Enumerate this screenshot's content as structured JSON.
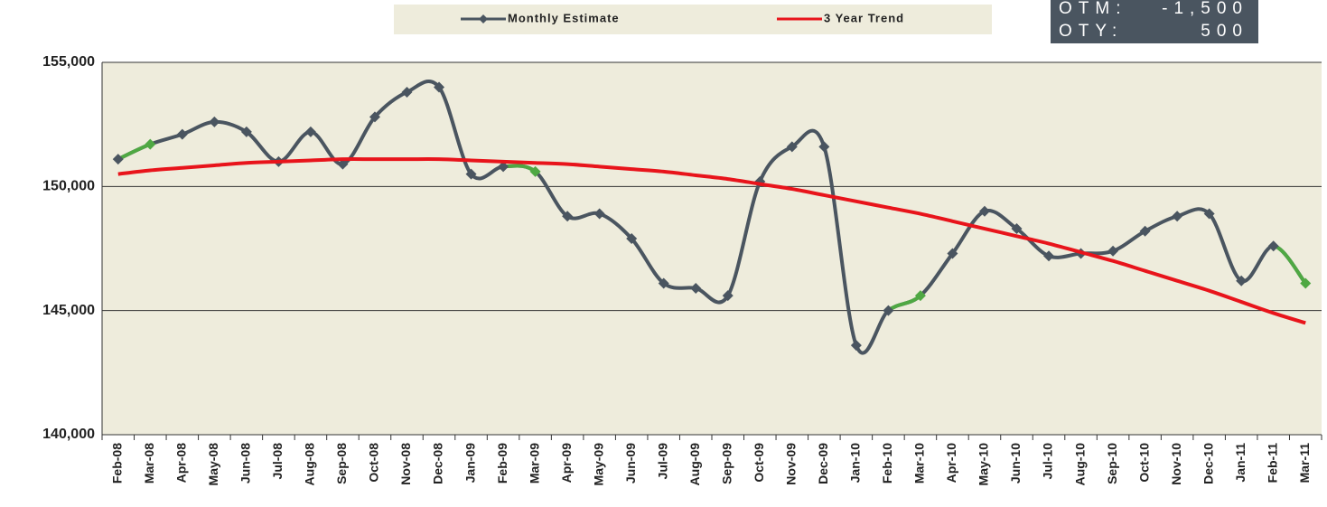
{
  "chart_data": {
    "type": "line",
    "categories": [
      "Feb-08",
      "Mar-08",
      "Apr-08",
      "May-08",
      "Jun-08",
      "Jul-08",
      "Aug-08",
      "Sep-08",
      "Oct-08",
      "Nov-08",
      "Dec-08",
      "Jan-09",
      "Feb-09",
      "Mar-09",
      "Apr-09",
      "May-09",
      "Jun-09",
      "Jul-09",
      "Aug-09",
      "Sep-09",
      "Oct-09",
      "Nov-09",
      "Dec-09",
      "Jan-10",
      "Feb-10",
      "Mar-10",
      "Apr-10",
      "May-10",
      "Jun-10",
      "Jul-10",
      "Aug-10",
      "Sep-10",
      "Oct-10",
      "Nov-10",
      "Dec-10",
      "Jan-11",
      "Feb-11",
      "Mar-11"
    ],
    "series": [
      {
        "name": "Monthly Estimate",
        "color": "#4a5560",
        "markers": true,
        "point_colors": [
          "#4a5560",
          "#4fa843",
          "#4a5560",
          "#4a5560",
          "#4a5560",
          "#4a5560",
          "#4a5560",
          "#4a5560",
          "#4a5560",
          "#4a5560",
          "#4a5560",
          "#4a5560",
          "#4a5560",
          "#4fa843",
          "#4a5560",
          "#4a5560",
          "#4a5560",
          "#4a5560",
          "#4a5560",
          "#4a5560",
          "#4a5560",
          "#4a5560",
          "#4a5560",
          "#4a5560",
          "#4a5560",
          "#4fa843",
          "#4a5560",
          "#4a5560",
          "#4a5560",
          "#4a5560",
          "#4a5560",
          "#4a5560",
          "#4a5560",
          "#4a5560",
          "#4a5560",
          "#4a5560",
          "#4a5560",
          "#4fa843"
        ],
        "values": [
          151100,
          151700,
          152100,
          152600,
          152200,
          151000,
          152200,
          150900,
          152800,
          153800,
          154000,
          150500,
          150800,
          150600,
          148800,
          148900,
          147900,
          146100,
          145900,
          145600,
          150200,
          151600,
          151600,
          143600,
          145000,
          145600,
          147300,
          149000,
          148300,
          147200,
          147300,
          147400,
          148200,
          148800,
          148900,
          146200,
          147600,
          146100
        ]
      },
      {
        "name": "3 Year Trend",
        "color": "#e8141b",
        "markers": false,
        "values": [
          150500,
          150650,
          150750,
          150850,
          150950,
          151000,
          151050,
          151100,
          151100,
          151100,
          151100,
          151050,
          151000,
          150950,
          150900,
          150800,
          150700,
          150600,
          150450,
          150300,
          150100,
          149900,
          149650,
          149400,
          149150,
          148900,
          148600,
          148300,
          148000,
          147700,
          147350,
          147000,
          146600,
          146200,
          145800,
          145350,
          144900,
          144500
        ]
      }
    ],
    "ylim": [
      140000,
      155000
    ],
    "yticks": [
      {
        "value": 140000,
        "label": "140,000"
      },
      {
        "value": 145000,
        "label": "145,000"
      },
      {
        "value": 150000,
        "label": "150,000"
      },
      {
        "value": 155000,
        "label": "155,000"
      }
    ],
    "grid": true,
    "legend": "top",
    "annotations": [
      {
        "label": "OTM:",
        "value": "-1,500"
      },
      {
        "label": "OTY:",
        "value": "500"
      }
    ]
  }
}
